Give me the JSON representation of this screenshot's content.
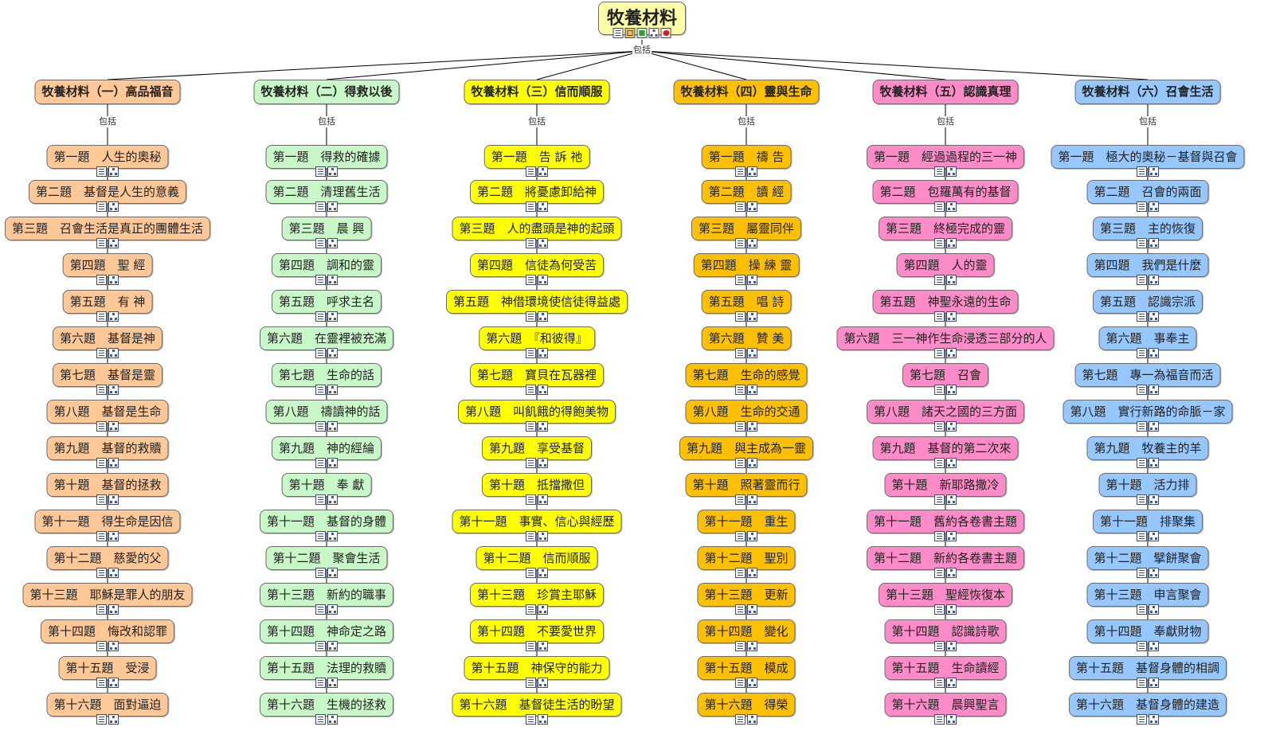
{
  "root": {
    "title": "牧養材料",
    "color": "#ffffa8",
    "icons": [
      "doc-icon",
      "book-icon",
      "green-icon",
      "tree-icon",
      "red-icon"
    ],
    "link_label": "包括"
  },
  "link_label": "包括",
  "categories": [
    {
      "title": "牧養材料（一）高品福音",
      "color": "#ffc896",
      "items": [
        "第一題　人生的奧秘",
        "第二題　基督是人生的意義",
        "第三題　召會生活是真正的團體生活",
        "第四題　聖 經",
        "第五題　有 神",
        "第六題　基督是神",
        "第七題　基督是靈",
        "第八題　基督是生命",
        "第九題　基督的救贖",
        "第十題　基督的拯救",
        "第十一題　得生命是因信",
        "第十二題　慈愛的父",
        "第十三題　耶穌是罪人的朋友",
        "第十四題　悔改和認罪",
        "第十五題　受浸",
        "第十六題　面對逼迫"
      ]
    },
    {
      "title": "牧養材料（二）得救以後",
      "color": "#c8f8c8",
      "items": [
        "第一題　得救的確據",
        "第二題　清理舊生活",
        "第三題　晨 興",
        "第四題　調和的靈",
        "第五題　呼求主名",
        "第六題　在靈裡被充滿",
        "第七題　生命的話",
        "第八題　禱讀神的話",
        "第九題　神的經綸",
        "第十題　奉 獻",
        "第十一題　基督的身體",
        "第十二題　聚會生活",
        "第十三題　新約的職事",
        "第十四題　神命定之路",
        "第十五題　法理的救贖",
        "第十六題　生機的拯救"
      ]
    },
    {
      "title": "牧養材料（三）信而順服",
      "color": "#ffff00",
      "items": [
        "第一題　告 訴 祂",
        "第二題　將憂慮卸給神",
        "第三題　人的盡頭是神的起頭",
        "第四題　信徒為何受苦",
        "第五題　神借環境使信徒得益處",
        "第六題　『和彼得』",
        "第七題　寶貝在瓦器裡",
        "第八題　叫飢餓的得飽美物",
        "第九題　享受基督",
        "第十題　抵擋撒但",
        "第十一題　事實、信心與經歷",
        "第十二題　信而順服",
        "第十三題　珍賞主耶穌",
        "第十四題　不要愛世界",
        "第十五題　神保守的能力",
        "第十六題　基督徒生活的盼望"
      ]
    },
    {
      "title": "牧養材料（四）靈與生命",
      "color": "#ffc000",
      "items": [
        "第一題　禱 告",
        "第二題　讀 經",
        "第三題　屬靈同伴",
        "第四題　操 練 靈",
        "第五題　唱 詩",
        "第六題　贊 美",
        "第七題　生命的感覺",
        "第八題　生命的交通",
        "第九題　與主成為一靈",
        "第十題　照著靈而行",
        "第十一題　重生",
        "第十二題　聖別",
        "第十三題　更新",
        "第十四題　變化",
        "第十五題　模成",
        "第十六題　得榮"
      ]
    },
    {
      "title": "牧養材料（五）認識真理",
      "color": "#ff8cc8",
      "items": [
        "第一題　經過過程的三一神",
        "第二題　包羅萬有的基督",
        "第三題　終極完成的靈",
        "第四題　人的靈",
        "第五題　神聖永遠的生命",
        "第六題　三一神作生命浸透三部分的人",
        "第七題　召會",
        "第八題　諸天之國的三方面",
        "第九題　基督的第二次來",
        "第十題　新耶路撒冷",
        "第十一題　舊約各卷書主題",
        "第十二題　新約各卷書主題",
        "第十三題　聖經恢復本",
        "第十四題　認識詩歌",
        "第十五題　生命讀經",
        "第十六題　晨興聖言"
      ]
    },
    {
      "title": "牧養材料（六）召會生活",
      "color": "#96c8ff",
      "items": [
        "第一題　極大的奧秘－基督與召會",
        "第二題　召會的兩面",
        "第三題　主的恢復",
        "第四題　我們是什麼",
        "第五題　認識宗派",
        "第六題　事奉主",
        "第七題　專一為福音而活",
        "第八題　實行新路的命脈－家",
        "第九題　牧養主的羊",
        "第十題　活力排",
        "第十一題　排聚集",
        "第十二題　擘餅聚會",
        "第十三題　申言聚會",
        "第十四題　奉獻財物",
        "第十五題　基督身體的相調",
        "第十六題　基督身體的建造"
      ]
    }
  ]
}
